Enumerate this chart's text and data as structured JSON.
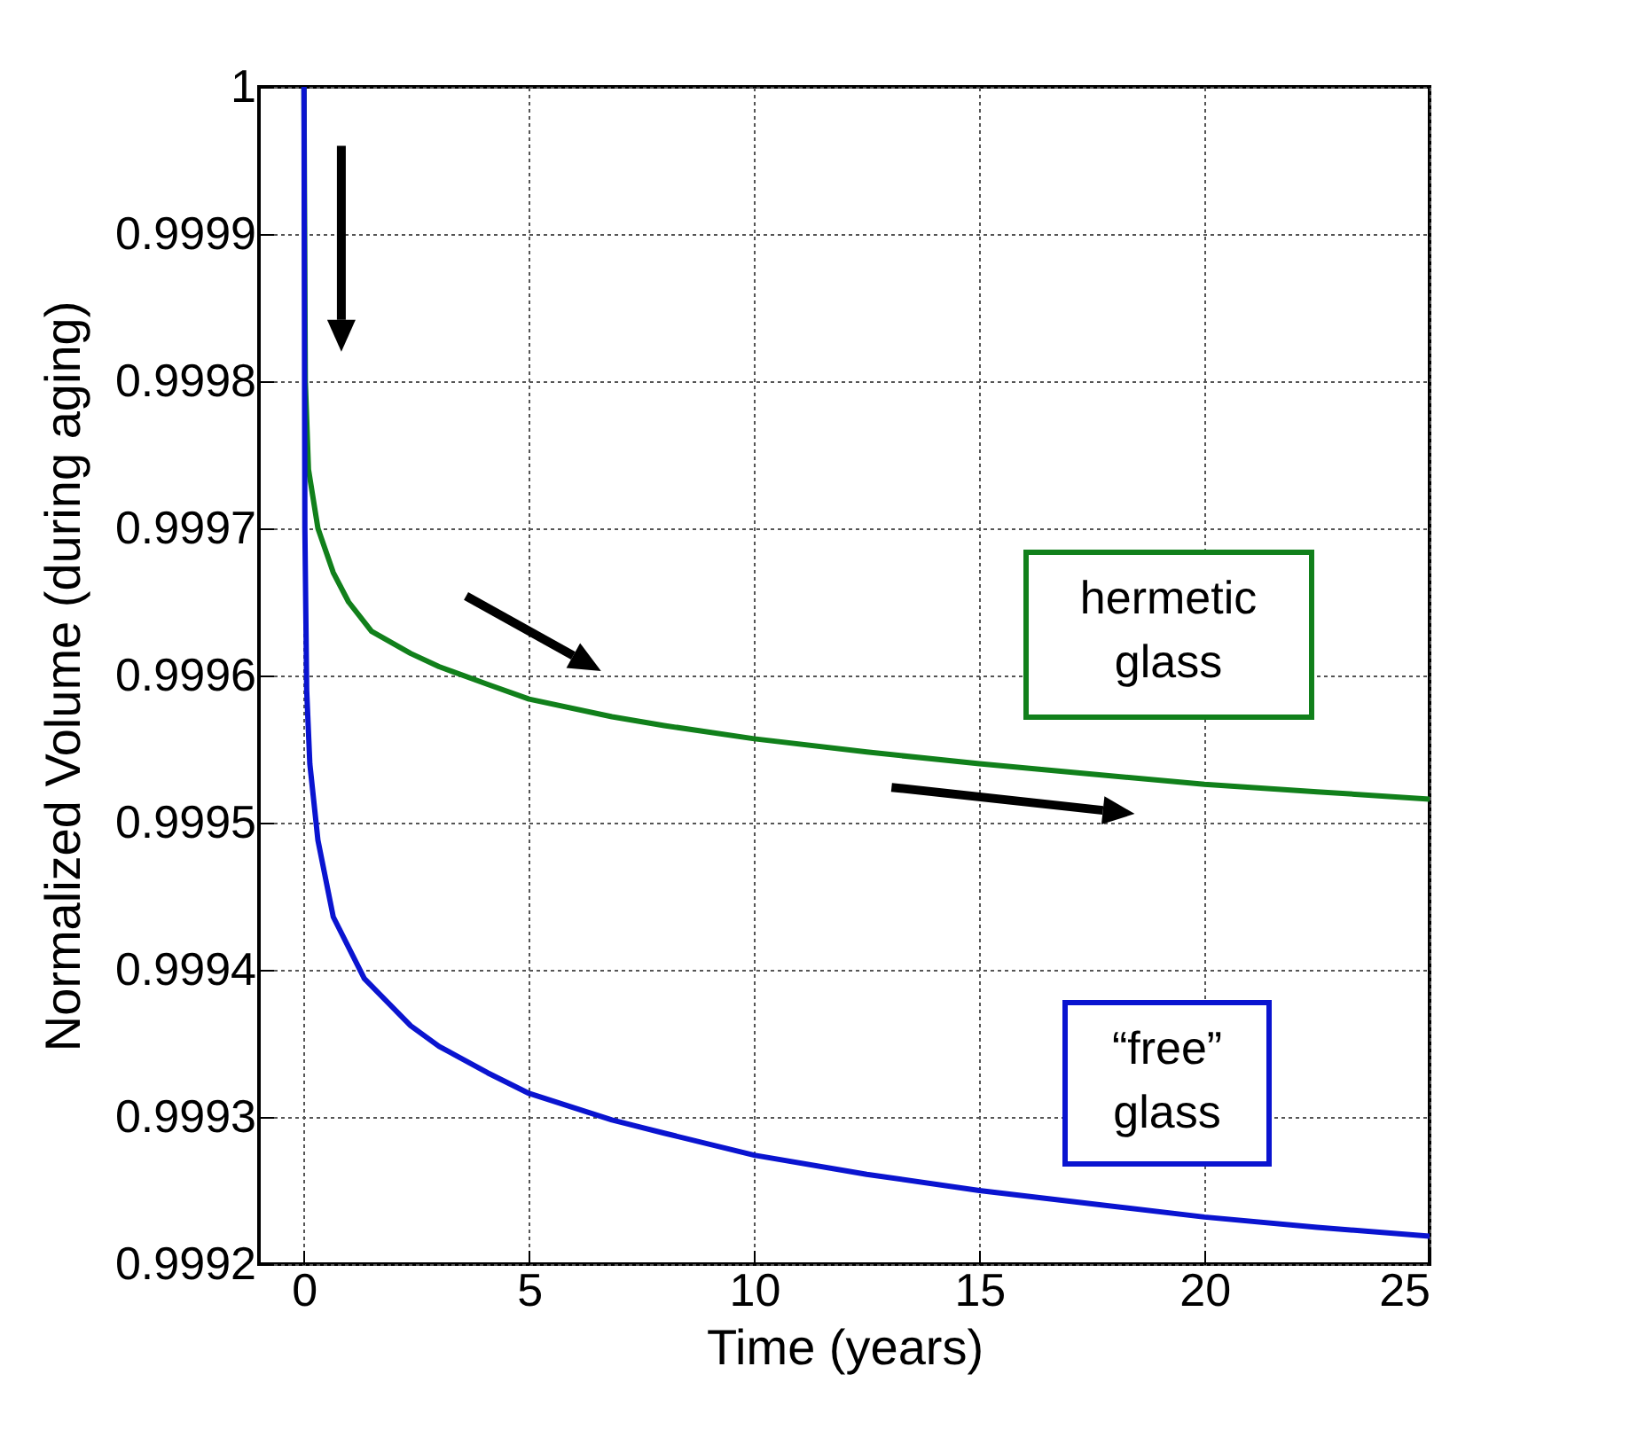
{
  "chart_data": {
    "type": "line",
    "xlabel": "Time (years)",
    "ylabel": "Normalized Volume (during aging)",
    "xlim": [
      -1,
      25
    ],
    "xticks": [
      0,
      5,
      10,
      15,
      20,
      25
    ],
    "ylim": [
      0.9992,
      1
    ],
    "yticks": [
      0.9992,
      0.9993,
      0.9994,
      0.9995,
      0.9996,
      0.9997,
      0.9998,
      0.9999,
      1
    ],
    "grid": true,
    "marker": "none",
    "line_style": "solid",
    "annotations": [
      "hermetic glass",
      "“free” glass"
    ],
    "series": [
      {
        "color": "#11801b",
        "x": [
          0,
          0.03,
          0.1,
          0.31,
          0.65,
          0.99,
          1.5,
          2.37,
          3,
          4.08,
          5,
          6.84,
          8,
          10,
          12.5,
          15,
          17.5,
          20,
          22.5,
          25
        ],
        "values": [
          1,
          0.9998,
          0.99974,
          0.9997,
          0.99967,
          0.99965,
          0.99963,
          0.999615,
          0.999606,
          0.999594,
          0.999584,
          0.999572,
          0.999566,
          0.999557,
          0.999548,
          0.99954,
          0.999533,
          0.999526,
          0.999521,
          0.999516
        ]
      },
      {
        "color": "#0a14d0",
        "x": [
          0,
          0.02,
          0.06,
          0.13,
          0.31,
          0.65,
          1.34,
          2.37,
          3,
          4.08,
          5,
          6.84,
          8,
          10,
          12.5,
          15,
          17.5,
          20,
          22.5,
          25
        ],
        "values": [
          1,
          0.9997,
          0.99959,
          0.99954,
          0.999488,
          0.999436,
          0.999394,
          0.999362,
          0.999348,
          0.99933,
          0.999316,
          0.999298,
          0.999289,
          0.999274,
          0.999261,
          0.99925,
          0.999241,
          0.999232,
          0.999225,
          0.999219
        ]
      }
    ]
  }
}
